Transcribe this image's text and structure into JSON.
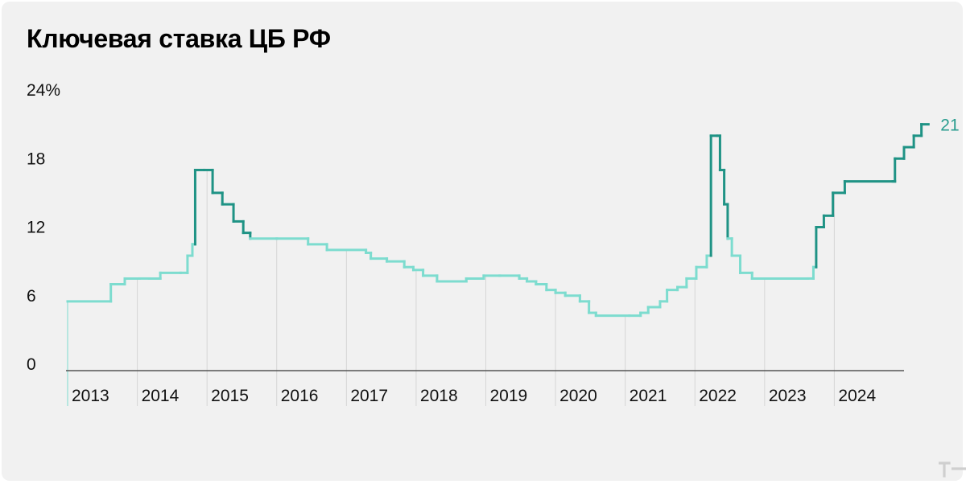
{
  "chart_data": {
    "type": "line",
    "step": true,
    "title": "Ключевая ставка ЦБ РФ",
    "xlabel": "",
    "ylabel": "",
    "ylim": [
      0,
      24
    ],
    "xlim": [
      2013.0,
      2025.0
    ],
    "y_ticks": [
      {
        "value": 24,
        "label": "24%"
      },
      {
        "value": 18,
        "label": "18"
      },
      {
        "value": 12,
        "label": "12"
      },
      {
        "value": 6,
        "label": "6"
      },
      {
        "value": 0,
        "label": "0"
      }
    ],
    "x_ticks": [
      "2013",
      "2014",
      "2015",
      "2016",
      "2017",
      "2018",
      "2019",
      "2020",
      "2021",
      "2022",
      "2023",
      "2024"
    ],
    "last_value_label": "21",
    "colors": {
      "light": "#7ddccf",
      "dark": "#1f9385",
      "grid": "#d6d6d6",
      "axis": "#555555",
      "label": "#2a9d8f"
    },
    "series": [
      {
        "name": "Ключевая ставка",
        "points": [
          [
            2013.0,
            5.5
          ],
          [
            2013.62,
            7.0
          ],
          [
            2013.82,
            7.5
          ],
          [
            2014.03,
            7.5
          ],
          [
            2014.17,
            7.5
          ],
          [
            2014.33,
            8.0
          ],
          [
            2014.62,
            8.0
          ],
          [
            2014.72,
            9.5
          ],
          [
            2014.79,
            10.5
          ],
          [
            2014.83,
            17.0
          ],
          [
            2014.96,
            17.0
          ],
          [
            2015.08,
            15.0
          ],
          [
            2015.22,
            14.0
          ],
          [
            2015.38,
            12.5
          ],
          [
            2015.52,
            11.5
          ],
          [
            2015.62,
            11.0
          ],
          [
            2016.0,
            11.0
          ],
          [
            2016.45,
            10.5
          ],
          [
            2016.72,
            10.0
          ],
          [
            2017.28,
            9.75
          ],
          [
            2017.35,
            9.25
          ],
          [
            2017.58,
            9.0
          ],
          [
            2017.83,
            8.5
          ],
          [
            2017.96,
            8.25
          ],
          [
            2018.1,
            7.75
          ],
          [
            2018.3,
            7.25
          ],
          [
            2018.72,
            7.5
          ],
          [
            2018.97,
            7.75
          ],
          [
            2019.2,
            7.75
          ],
          [
            2019.48,
            7.5
          ],
          [
            2019.59,
            7.25
          ],
          [
            2019.72,
            7.0
          ],
          [
            2019.87,
            6.5
          ],
          [
            2020.0,
            6.25
          ],
          [
            2020.14,
            6.0
          ],
          [
            2020.35,
            5.5
          ],
          [
            2020.48,
            4.5
          ],
          [
            2020.58,
            4.25
          ],
          [
            2021.06,
            4.25
          ],
          [
            2021.22,
            4.5
          ],
          [
            2021.33,
            5.0
          ],
          [
            2021.5,
            5.5
          ],
          [
            2021.6,
            6.5
          ],
          [
            2021.75,
            6.75
          ],
          [
            2021.88,
            7.5
          ],
          [
            2022.02,
            8.5
          ],
          [
            2022.17,
            9.5
          ],
          [
            2022.23,
            20.0
          ],
          [
            2022.32,
            20.0
          ],
          [
            2022.36,
            17.0
          ],
          [
            2022.42,
            14.0
          ],
          [
            2022.47,
            11.0
          ],
          [
            2022.53,
            9.5
          ],
          [
            2022.65,
            8.0
          ],
          [
            2022.82,
            7.5
          ],
          [
            2023.62,
            7.5
          ],
          [
            2023.7,
            8.5
          ],
          [
            2023.74,
            12.0
          ],
          [
            2023.85,
            13.0
          ],
          [
            2023.98,
            15.0
          ],
          [
            2024.15,
            16.0
          ],
          [
            2024.84,
            16.0
          ],
          [
            2024.87,
            18.0
          ],
          [
            2025.0,
            19.0
          ],
          [
            2025.14,
            20.0
          ],
          [
            2025.25,
            21.0
          ],
          [
            2025.35,
            21.0
          ]
        ]
      }
    ]
  },
  "watermark": "т—ж"
}
